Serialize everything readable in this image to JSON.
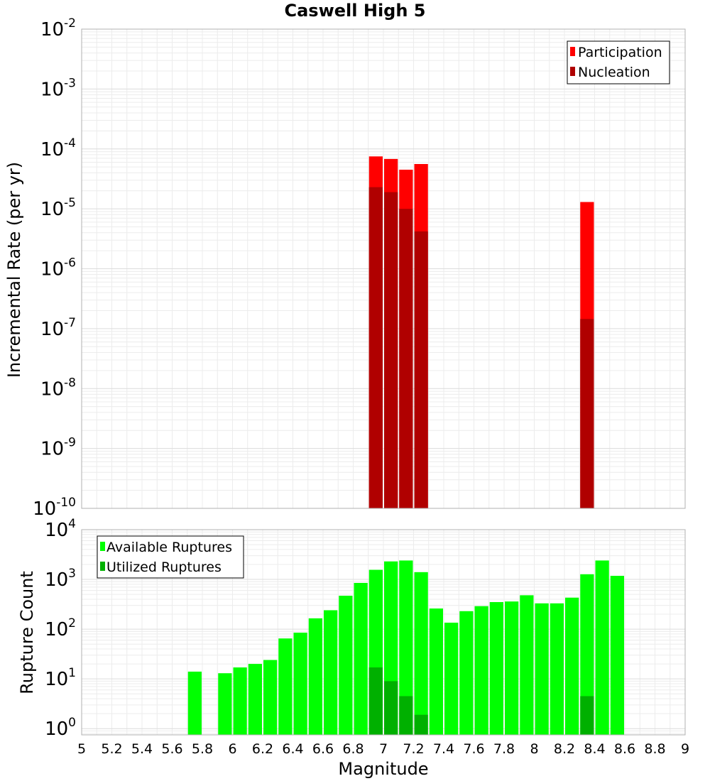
{
  "chart_data": [
    {
      "type": "bar",
      "panel": "top",
      "title": "Caswell High 5",
      "ylabel": "Incremental Rate (per yr)",
      "yscale": "log",
      "ylim": [
        1e-10,
        0.01
      ],
      "xlim": [
        5,
        9
      ],
      "y_tick_exponents": [
        -10,
        -9,
        -8,
        -7,
        -6,
        -5,
        -4,
        -3,
        -2
      ],
      "legend_position": "top-right",
      "series": [
        {
          "name": "Participation",
          "color": "#ff0000",
          "x": [
            6.95,
            7.05,
            7.15,
            7.25,
            8.35
          ],
          "values": [
            7.5e-05,
            6.8e-05,
            4.5e-05,
            5.6e-05,
            1.3e-05
          ]
        },
        {
          "name": "Nucleation",
          "color": "#b00000",
          "x": [
            6.95,
            7.05,
            7.15,
            7.25,
            8.35
          ],
          "values": [
            2.3e-05,
            1.9e-05,
            1e-05,
            4.2e-06,
            1.45e-07
          ]
        }
      ]
    },
    {
      "type": "bar",
      "panel": "bottom",
      "xlabel": "Magnitude",
      "ylabel": "Rupture Count",
      "yscale": "log",
      "ylim": [
        0.75,
        10000
      ],
      "xlim": [
        5,
        9
      ],
      "x_ticks": [
        "5",
        "5.2",
        "5.4",
        "5.6",
        "5.8",
        "6",
        "6.2",
        "6.4",
        "6.6",
        "6.8",
        "7",
        "7.2",
        "7.4",
        "7.6",
        "7.8",
        "8",
        "8.2",
        "8.4",
        "8.6",
        "8.8",
        "9"
      ],
      "y_tick_exponents": [
        0,
        1,
        2,
        3,
        4
      ],
      "legend_position": "top-left",
      "series": [
        {
          "name": "Available Ruptures",
          "color": "#00ff00",
          "x": [
            5.75,
            5.95,
            6.05,
            6.15,
            6.25,
            6.35,
            6.45,
            6.55,
            6.65,
            6.75,
            6.85,
            6.95,
            7.05,
            7.15,
            7.25,
            7.35,
            7.45,
            7.55,
            7.65,
            7.75,
            7.85,
            7.95,
            8.05,
            8.15,
            8.25,
            8.35,
            8.45,
            8.55
          ],
          "values": [
            14,
            13,
            17,
            20,
            24,
            65,
            85,
            165,
            240,
            470,
            850,
            1560,
            2300,
            2400,
            1400,
            260,
            135,
            230,
            290,
            350,
            360,
            480,
            330,
            330,
            430,
            1270,
            2400,
            1180
          ]
        },
        {
          "name": "Utilized Ruptures",
          "color": "#00b000",
          "x": [
            6.95,
            7.05,
            7.15,
            7.25,
            8.35
          ],
          "values": [
            17,
            9,
            4.5,
            1.9,
            4.5
          ]
        }
      ]
    }
  ]
}
